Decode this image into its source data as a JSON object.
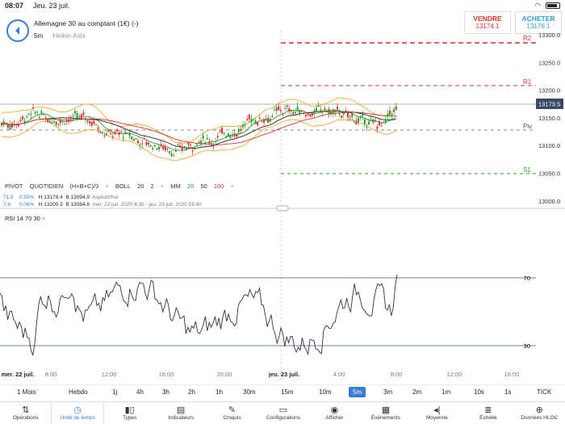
{
  "status": {
    "time": "08:07",
    "date": "Jeu. 23 juil."
  },
  "instrument": {
    "name": "Allemagne 30 au comptant (1€) (-)",
    "interval": "5m",
    "chart_kind": "Heikin-Ashi"
  },
  "quotes": {
    "sell_label": "VENDRE",
    "sell_value": "13174.1",
    "buy_label": "ACHETER",
    "buy_value": "13176.1"
  },
  "price_axis": {
    "ticks": [
      "13300.0",
      "13250.0",
      "13200.0",
      "13150.0",
      "13100.0",
      "13050.0",
      "13000.0"
    ],
    "current": "13173.5"
  },
  "pivot_levels": {
    "r2": "R2",
    "r1": "R1",
    "piv": "Piv",
    "s1": "S1"
  },
  "legend": {
    "pivot": "PIVOT",
    "pivot_period": "QUOTIDIEN",
    "pivot_formula": "(H+B+C)/3",
    "boll": "BOLL",
    "boll_p1": "20",
    "boll_p2": "2",
    "mm": "MM",
    "mm_1": "20",
    "mm_2": "50",
    "mm_3": "100",
    "close_glyph": "×",
    "today_change": "71.6",
    "today_pct": "0.55%",
    "today_h": "H 13179.4",
    "today_b": "B 13094.9",
    "today_label": "Aujourd'hui",
    "prev_change": "7.6",
    "prev_pct": "0.06%",
    "prev_h": "H 13200.3",
    "prev_b": "B 13084.6",
    "prev_label": "mer. 22 juil. 2020 4:30 - jeu. 23 juil. 2020 19:40"
  },
  "rsi": {
    "label": "RSI",
    "p1": "14",
    "p2": "70",
    "p3": "30",
    "upper": "70",
    "lower": "30"
  },
  "time_axis": [
    "mer. 22 juil.",
    "8:00",
    "12:00",
    "16:00",
    "20:00",
    "jeu. 23 juil.",
    "4:00",
    "8:00",
    "12:00",
    "16:00"
  ],
  "timeframes": [
    "1 Mois",
    "Hebdo",
    "1j",
    "4h",
    "3h",
    "2h",
    "1h",
    "30m",
    "15m",
    "10m",
    "5m",
    "3m",
    "2m",
    "1m",
    "10s",
    "1s",
    "TICK"
  ],
  "active_timeframe": "5m",
  "toolbar": [
    {
      "label": "Opérations",
      "icon": "sort-arrows-icon",
      "glyph": "⇅"
    },
    {
      "label": "Unité de temps",
      "icon": "clock-icon",
      "glyph": "◷"
    },
    {
      "label": "Types",
      "icon": "candles-icon",
      "glyph": "▮▯"
    },
    {
      "label": "Indicateurs",
      "icon": "indicators-icon",
      "glyph": "▤"
    },
    {
      "label": "Croquis",
      "icon": "pencil-icon",
      "glyph": "✎"
    },
    {
      "label": "Configurations",
      "icon": "layout-icon",
      "glyph": "▭"
    },
    {
      "label": "Afficher",
      "icon": "eye-icon",
      "glyph": "◉"
    },
    {
      "label": "Événements",
      "icon": "calendar-icon",
      "glyph": "▦"
    },
    {
      "label": "Moyenne",
      "icon": "speaker-icon",
      "glyph": "◂|"
    },
    {
      "label": "Échelle",
      "icon": "scale-icon",
      "glyph": "≣"
    },
    {
      "label": "Données HLOC",
      "icon": "crosshair-icon",
      "glyph": "⊕"
    }
  ],
  "colors": {
    "accent": "#3a7bd5",
    "bull": "#2a9d2a",
    "bear": "#d9302c",
    "boll": "#f0a830",
    "rsi_line": "#333333"
  }
}
